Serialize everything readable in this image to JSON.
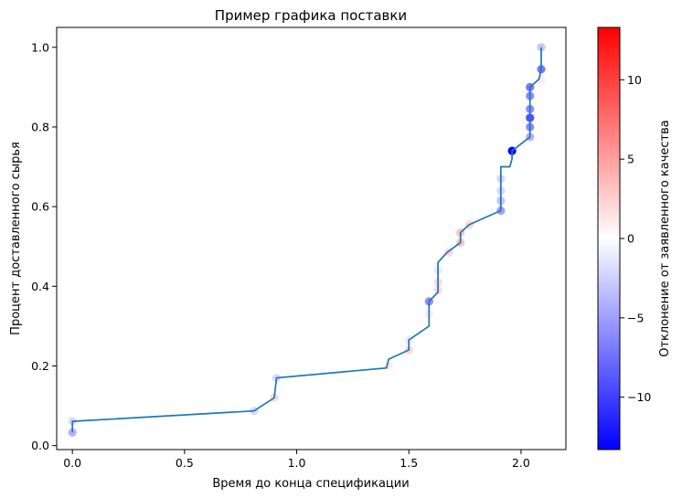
{
  "chart_data": {
    "type": "scatter",
    "title": "Пример графика поставки",
    "xlabel": "Время до конца спецификации",
    "ylabel": "Процент доставленного сырья",
    "xlim": [
      -0.07,
      2.2
    ],
    "ylim": [
      -0.01,
      1.05
    ],
    "x_ticks": [
      0.0,
      0.5,
      1.0,
      1.5,
      2.0
    ],
    "x_tick_labels": [
      "0.0",
      "0.5",
      "1.0",
      "1.5",
      "2.0"
    ],
    "y_ticks": [
      0.0,
      0.2,
      0.4,
      0.6,
      0.8,
      1.0
    ],
    "y_tick_labels": [
      "0.0",
      "0.2",
      "0.4",
      "0.6",
      "0.8",
      "1.0"
    ],
    "grid": false,
    "colorbar": {
      "label": "Отклонение от заявленного качества",
      "min": -13.3,
      "max": 13.3,
      "ticks": [
        -10,
        -5,
        0,
        5,
        10
      ],
      "tick_labels": [
        "−10",
        "−5",
        "0",
        "5",
        "10"
      ],
      "colormap": "bwr",
      "colors": [
        "#0000ff",
        "#ffffff",
        "#ff0000"
      ]
    },
    "series": [
      {
        "type": "line",
        "color": "#1f77b4",
        "points": [
          [
            0.0,
            0.033
          ],
          [
            0.0,
            0.061
          ],
          [
            0.81,
            0.087
          ],
          [
            0.9,
            0.12
          ],
          [
            0.91,
            0.17
          ],
          [
            1.4,
            0.195
          ],
          [
            1.41,
            0.217
          ],
          [
            1.5,
            0.24
          ],
          [
            1.5,
            0.265
          ],
          [
            1.59,
            0.3
          ],
          [
            1.59,
            0.362
          ],
          [
            1.63,
            0.385
          ],
          [
            1.63,
            0.46
          ],
          [
            1.67,
            0.485
          ],
          [
            1.73,
            0.51
          ],
          [
            1.73,
            0.535
          ],
          [
            1.77,
            0.555
          ],
          [
            1.91,
            0.59
          ],
          [
            1.91,
            0.7
          ],
          [
            1.95,
            0.7
          ],
          [
            1.96,
            0.72
          ],
          [
            1.96,
            0.74
          ],
          [
            2.04,
            0.775
          ],
          [
            2.04,
            0.9
          ],
          [
            2.08,
            0.92
          ],
          [
            2.09,
            0.945
          ],
          [
            2.09,
            1.0
          ]
        ]
      },
      {
        "type": "scatter",
        "points": [
          {
            "x": 0.0,
            "y": 0.033,
            "c": -4
          },
          {
            "x": 0.0,
            "y": 0.061,
            "c": -2
          },
          {
            "x": 0.81,
            "y": 0.087,
            "c": -2
          },
          {
            "x": 0.9,
            "y": 0.12,
            "c": 2
          },
          {
            "x": 0.91,
            "y": 0.17,
            "c": -2
          },
          {
            "x": 1.41,
            "y": 0.2,
            "c": 1
          },
          {
            "x": 1.5,
            "y": 0.24,
            "c": 2
          },
          {
            "x": 1.5,
            "y": 0.265,
            "c": -1
          },
          {
            "x": 1.59,
            "y": 0.33,
            "c": 1
          },
          {
            "x": 1.59,
            "y": 0.362,
            "c": -6
          },
          {
            "x": 1.63,
            "y": 0.39,
            "c": 2
          },
          {
            "x": 1.63,
            "y": 0.41,
            "c": 2
          },
          {
            "x": 1.63,
            "y": 0.44,
            "c": -1
          },
          {
            "x": 1.68,
            "y": 0.485,
            "c": 2
          },
          {
            "x": 1.73,
            "y": 0.51,
            "c": 3
          },
          {
            "x": 1.73,
            "y": 0.535,
            "c": 3
          },
          {
            "x": 1.77,
            "y": 0.555,
            "c": 2
          },
          {
            "x": 1.91,
            "y": 0.59,
            "c": -5
          },
          {
            "x": 1.91,
            "y": 0.615,
            "c": -3
          },
          {
            "x": 1.91,
            "y": 0.64,
            "c": -2
          },
          {
            "x": 1.91,
            "y": 0.67,
            "c": -2
          },
          {
            "x": 1.96,
            "y": 0.74,
            "c": -13
          },
          {
            "x": 2.04,
            "y": 0.775,
            "c": -4
          },
          {
            "x": 2.04,
            "y": 0.8,
            "c": -6
          },
          {
            "x": 2.04,
            "y": 0.823,
            "c": -9
          },
          {
            "x": 2.04,
            "y": 0.845,
            "c": -6
          },
          {
            "x": 2.04,
            "y": 0.878,
            "c": -6
          },
          {
            "x": 2.04,
            "y": 0.9,
            "c": -7
          },
          {
            "x": 2.09,
            "y": 0.92,
            "c": 1
          },
          {
            "x": 2.09,
            "y": 0.945,
            "c": -7
          },
          {
            "x": 2.09,
            "y": 1.0,
            "c": -3
          }
        ]
      }
    ]
  }
}
